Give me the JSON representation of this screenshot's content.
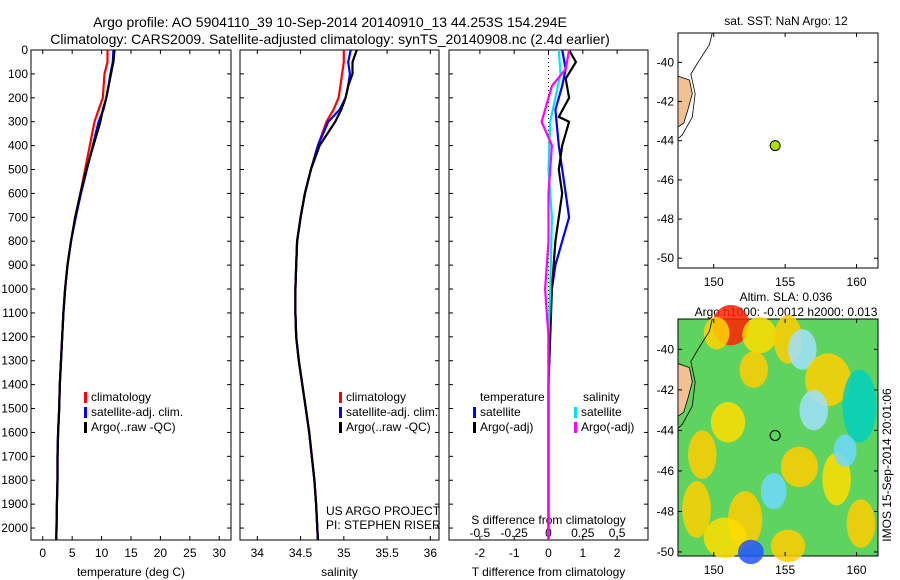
{
  "header": {
    "line1": "Argo profile: AO 5904110_39 10-Sep-2014 20140910_13 44.253S 154.294E",
    "line2": "Climatology: CARS2009. Satellite-adjusted climatology: synTS_20140908.nc (2.4d earlier)"
  },
  "colors": {
    "climatology": "#ff0000",
    "satellite": "#0000ff",
    "argo": "#000000",
    "sal_satellite": "#00e5ee",
    "sal_argo": "#ff00ff",
    "land": "#f2c095",
    "marker": "#a8e000",
    "sla_base": "#5fd35f"
  },
  "chart_data": [
    {
      "type": "line",
      "xlabel": "temperature (deg C)",
      "xlim": [
        -2,
        32
      ],
      "ylim": [
        2050,
        0
      ],
      "xticks": [
        0,
        5,
        10,
        15,
        20,
        25,
        30
      ],
      "yticks": [
        0,
        100,
        200,
        300,
        400,
        500,
        600,
        700,
        800,
        900,
        1000,
        1100,
        1200,
        1300,
        1400,
        1500,
        1600,
        1700,
        1800,
        1900,
        2000
      ],
      "legend": [
        "climatology",
        "satellite-adj. clim.",
        "Argo(..raw -QC)"
      ],
      "series": [
        {
          "name": "climatology",
          "color": "climatology",
          "points": [
            [
              11.0,
              0
            ],
            [
              11.0,
              50
            ],
            [
              10.5,
              100
            ],
            [
              10.2,
              200
            ],
            [
              9.5,
              250
            ],
            [
              8.8,
              300
            ],
            [
              8.0,
              400
            ],
            [
              7.2,
              500
            ],
            [
              6.4,
              600
            ],
            [
              5.6,
              700
            ],
            [
              4.8,
              800
            ],
            [
              4.2,
              900
            ],
            [
              3.8,
              1000
            ],
            [
              3.5,
              1100
            ],
            [
              3.3,
              1200
            ],
            [
              3.1,
              1300
            ],
            [
              2.9,
              1400
            ],
            [
              2.8,
              1500
            ],
            [
              2.6,
              1600
            ],
            [
              2.5,
              1700
            ],
            [
              2.5,
              1800
            ],
            [
              2.4,
              1900
            ],
            [
              2.3,
              2050
            ]
          ]
        },
        {
          "name": "satellite-adj. clim.",
          "color": "satellite",
          "points": [
            [
              12.0,
              0
            ],
            [
              11.9,
              50
            ],
            [
              11.5,
              100
            ],
            [
              11.2,
              150
            ],
            [
              10.8,
              200
            ],
            [
              10.3,
              250
            ],
            [
              9.5,
              300
            ],
            [
              8.5,
              400
            ],
            [
              7.5,
              500
            ],
            [
              6.5,
              600
            ],
            [
              5.6,
              700
            ],
            [
              4.8,
              800
            ],
            [
              4.2,
              900
            ],
            [
              3.8,
              1000
            ],
            [
              3.5,
              1100
            ],
            [
              3.3,
              1200
            ],
            [
              3.1,
              1300
            ],
            [
              2.9,
              1400
            ],
            [
              2.8,
              1500
            ],
            [
              2.6,
              1600
            ],
            [
              2.5,
              1700
            ],
            [
              2.5,
              1800
            ],
            [
              2.4,
              1900
            ],
            [
              2.3,
              2050
            ]
          ]
        },
        {
          "name": "Argo(..raw -QC)",
          "color": "argo",
          "points": [
            [
              12.2,
              0
            ],
            [
              12.0,
              50
            ],
            [
              11.6,
              100
            ],
            [
              11.2,
              150
            ],
            [
              10.8,
              200
            ],
            [
              10.2,
              250
            ],
            [
              9.8,
              300
            ],
            [
              8.6,
              400
            ],
            [
              7.4,
              500
            ],
            [
              6.4,
              600
            ],
            [
              5.5,
              700
            ],
            [
              4.8,
              800
            ],
            [
              4.2,
              900
            ],
            [
              3.8,
              1000
            ],
            [
              3.5,
              1100
            ],
            [
              3.3,
              1200
            ],
            [
              3.1,
              1300
            ],
            [
              2.9,
              1400
            ],
            [
              2.8,
              1500
            ],
            [
              2.6,
              1600
            ],
            [
              2.5,
              1700
            ],
            [
              2.5,
              1800
            ],
            [
              2.4,
              1900
            ],
            [
              2.3,
              2050
            ]
          ]
        }
      ]
    },
    {
      "type": "line",
      "xlabel": "salinity",
      "xlim": [
        33.8,
        36.1
      ],
      "ylim": [
        2050,
        0
      ],
      "xticks": [
        34,
        34.5,
        35,
        35.5,
        36
      ],
      "legend": [
        "climatology",
        "satellite-adj. clim.",
        "Argo(..raw -QC)"
      ],
      "annotation": [
        "US ARGO PROJECT",
        "PI: STEPHEN RISER"
      ],
      "series": [
        {
          "name": "climatology",
          "color": "climatology",
          "points": [
            [
              35.0,
              0
            ],
            [
              35.0,
              50
            ],
            [
              34.98,
              100
            ],
            [
              34.96,
              150
            ],
            [
              34.94,
              200
            ],
            [
              34.88,
              250
            ],
            [
              34.8,
              300
            ],
            [
              34.7,
              400
            ],
            [
              34.62,
              500
            ],
            [
              34.55,
              600
            ],
            [
              34.5,
              700
            ],
            [
              34.46,
              800
            ],
            [
              34.45,
              900
            ],
            [
              34.44,
              1000
            ],
            [
              34.44,
              1100
            ],
            [
              34.45,
              1200
            ],
            [
              34.48,
              1300
            ],
            [
              34.52,
              1400
            ],
            [
              34.56,
              1500
            ],
            [
              34.6,
              1600
            ],
            [
              34.63,
              1700
            ],
            [
              34.66,
              1800
            ],
            [
              34.68,
              1900
            ],
            [
              34.7,
              2050
            ]
          ]
        },
        {
          "name": "satellite-adj. clim.",
          "color": "satellite",
          "points": [
            [
              35.08,
              0
            ],
            [
              35.05,
              50
            ],
            [
              35.07,
              100
            ],
            [
              35.05,
              150
            ],
            [
              35.02,
              200
            ],
            [
              34.95,
              250
            ],
            [
              34.82,
              300
            ],
            [
              34.7,
              400
            ],
            [
              34.62,
              500
            ],
            [
              34.55,
              600
            ],
            [
              34.5,
              700
            ],
            [
              34.46,
              800
            ],
            [
              34.45,
              900
            ],
            [
              34.44,
              1000
            ],
            [
              34.44,
              1100
            ],
            [
              34.45,
              1200
            ],
            [
              34.48,
              1300
            ],
            [
              34.52,
              1400
            ],
            [
              34.56,
              1500
            ],
            [
              34.6,
              1600
            ],
            [
              34.63,
              1700
            ],
            [
              34.66,
              1800
            ],
            [
              34.68,
              1900
            ],
            [
              34.7,
              2050
            ]
          ]
        },
        {
          "name": "Argo(..raw -QC)",
          "color": "argo",
          "points": [
            [
              35.15,
              0
            ],
            [
              35.1,
              50
            ],
            [
              35.1,
              100
            ],
            [
              35.05,
              150
            ],
            [
              35.02,
              200
            ],
            [
              34.97,
              250
            ],
            [
              34.9,
              300
            ],
            [
              34.72,
              400
            ],
            [
              34.62,
              500
            ],
            [
              34.55,
              600
            ],
            [
              34.5,
              700
            ],
            [
              34.46,
              800
            ],
            [
              34.45,
              900
            ],
            [
              34.44,
              1000
            ],
            [
              34.44,
              1100
            ],
            [
              34.45,
              1200
            ],
            [
              34.48,
              1300
            ],
            [
              34.52,
              1400
            ],
            [
              34.56,
              1500
            ],
            [
              34.6,
              1600
            ],
            [
              34.63,
              1700
            ],
            [
              34.66,
              1800
            ],
            [
              34.68,
              1900
            ],
            [
              34.7,
              2050
            ]
          ]
        }
      ]
    },
    {
      "type": "line",
      "xlabel": "T difference from climatology",
      "xlabel_top": "S difference from climatology",
      "xlim": [
        -2.9,
        2.9
      ],
      "ylim": [
        2050,
        0
      ],
      "xticks": [
        -2,
        -1,
        0,
        1,
        2
      ],
      "xticks_s": [
        -0.5,
        -0.25,
        0,
        0.25,
        0.5
      ],
      "legend_titles": [
        "temperature",
        "salinity"
      ],
      "legend_left": [
        "satellite",
        "Argo(-adj)"
      ],
      "legend_right": [
        "satellite",
        "Argo(-adj)"
      ],
      "series": [
        {
          "name": "satellite",
          "color": "satellite",
          "points": [
            [
              0.4,
              0
            ],
            [
              0.5,
              80
            ],
            [
              0.4,
              150
            ],
            [
              0.2,
              250
            ],
            [
              0.3,
              400
            ],
            [
              0.5,
              600
            ],
            [
              0.6,
              700
            ],
            [
              0.4,
              800
            ],
            [
              0.2,
              900
            ],
            [
              0.1,
              1000
            ],
            [
              0,
              1200
            ],
            [
              0,
              2050
            ]
          ]
        },
        {
          "name": "Argo(-adj)",
          "color": "argo",
          "points": [
            [
              0.6,
              0
            ],
            [
              0.8,
              50
            ],
            [
              0.5,
              120
            ],
            [
              0.6,
              200
            ],
            [
              0.3,
              280
            ],
            [
              0.6,
              300
            ],
            [
              0.4,
              400
            ],
            [
              0.3,
              500
            ],
            [
              0.4,
              600
            ],
            [
              0.2,
              800
            ],
            [
              0.1,
              1000
            ],
            [
              0.05,
              1200
            ],
            [
              0,
              1400
            ],
            [
              0,
              2050
            ]
          ]
        },
        {
          "name": "salinity satellite",
          "color": "sal_satellite",
          "points": [
            [
              0.3,
              0
            ],
            [
              0.35,
              100
            ],
            [
              0.2,
              200
            ],
            [
              0.05,
              300
            ],
            [
              0.0,
              500
            ],
            [
              0.1,
              700
            ],
            [
              0.05,
              1000
            ],
            [
              0,
              1200
            ],
            [
              0,
              2050
            ]
          ]
        },
        {
          "name": "salinity Argo(-adj)",
          "color": "sal_argo",
          "points": [
            [
              0.6,
              0
            ],
            [
              0.5,
              80
            ],
            [
              0.1,
              150
            ],
            [
              -0.1,
              250
            ],
            [
              -0.2,
              300
            ],
            [
              0.1,
              400
            ],
            [
              0.0,
              600
            ],
            [
              0.0,
              800
            ],
            [
              -0.1,
              1000
            ],
            [
              0.0,
              1200
            ],
            [
              0,
              2050
            ]
          ]
        }
      ]
    },
    {
      "type": "scatter",
      "title": "sat. SST: NaN Argo: 12",
      "xlim": [
        147.5,
        161.5
      ],
      "ylim": [
        -50.5,
        -38.5
      ],
      "xticks": [
        150,
        155,
        160
      ],
      "yticks": [
        -40,
        -42,
        -44,
        -46,
        -48,
        -50
      ],
      "points": [
        [
          154.3,
          -44.25
        ]
      ]
    },
    {
      "type": "heatmap",
      "title1": "Altim. SLA: 0.036",
      "title2": "Argo h1000: -0.0012 h2000: 0.013",
      "side_label": "IMOS 15-Sep-2014 20:01:06",
      "xlim": [
        147.5,
        161.5
      ],
      "ylim": [
        -50.2,
        -38.5
      ],
      "xticks": [
        150,
        155,
        160
      ],
      "yticks": [
        -40,
        -42,
        -44,
        -46,
        -48,
        -50
      ],
      "points": [
        [
          154.3,
          -44.25
        ]
      ]
    }
  ]
}
